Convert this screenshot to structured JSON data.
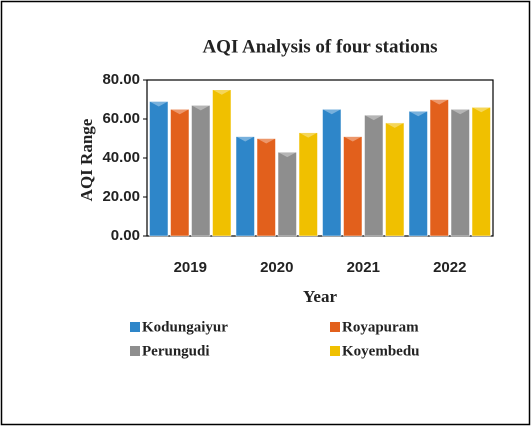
{
  "chart_data": {
    "type": "bar",
    "title": "AQI Analysis of four stations",
    "x_label": "Year",
    "y_label": "AQI Range",
    "categories": [
      "2019",
      "2020",
      "2021",
      "2022"
    ],
    "series": [
      {
        "name": "Kodungaiyur",
        "color": "#2e86c9",
        "values": [
          69,
          51,
          65,
          64
        ]
      },
      {
        "name": "Royapuram",
        "color": "#e2601c",
        "values": [
          65,
          50,
          51,
          70
        ]
      },
      {
        "name": "Perungudi",
        "color": "#8e8e8e",
        "values": [
          67,
          43,
          62,
          65
        ]
      },
      {
        "name": "Koyembedu",
        "color": "#f0c000",
        "values": [
          75,
          53,
          58,
          66
        ]
      }
    ],
    "ylim": [
      0,
      80
    ],
    "yticks": [
      {
        "value": 0,
        "label": "0.00"
      },
      {
        "value": 20,
        "label": "20.00"
      },
      {
        "value": 40,
        "label": "40.00"
      },
      {
        "value": 60,
        "label": "60.00"
      },
      {
        "value": 80,
        "label": "80.00"
      }
    ],
    "legend": "bottom"
  }
}
